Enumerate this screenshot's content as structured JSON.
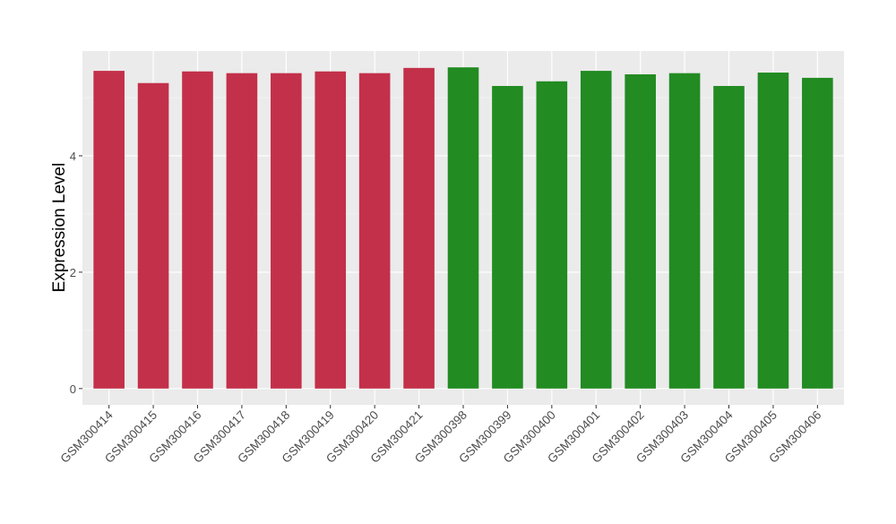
{
  "chart_data": {
    "type": "bar",
    "title": "",
    "xlabel": "",
    "ylabel": "Expression Level",
    "categories": [
      "GSM300414",
      "GSM300415",
      "GSM300416",
      "GSM300417",
      "GSM300418",
      "GSM300419",
      "GSM300420",
      "GSM300421",
      "GSM300398",
      "GSM300399",
      "GSM300400",
      "GSM300401",
      "GSM300402",
      "GSM300403",
      "GSM300404",
      "GSM300405",
      "GSM300406"
    ],
    "values": [
      5.46,
      5.25,
      5.45,
      5.42,
      5.42,
      5.45,
      5.42,
      5.51,
      5.52,
      5.2,
      5.28,
      5.46,
      5.4,
      5.42,
      5.2,
      5.43,
      5.34
    ],
    "bar_colors": [
      "#c3304a",
      "#c3304a",
      "#c3304a",
      "#c3304a",
      "#c3304a",
      "#c3304a",
      "#c3304a",
      "#c3304a",
      "#228b22",
      "#228b22",
      "#228b22",
      "#228b22",
      "#228b22",
      "#228b22",
      "#228b22",
      "#228b22",
      "#228b22"
    ],
    "ylim": [
      -0.28,
      5.8
    ],
    "yticks": [
      0,
      2,
      4
    ],
    "grid": true,
    "legend": "none",
    "panel_background": "#ebebeb"
  }
}
